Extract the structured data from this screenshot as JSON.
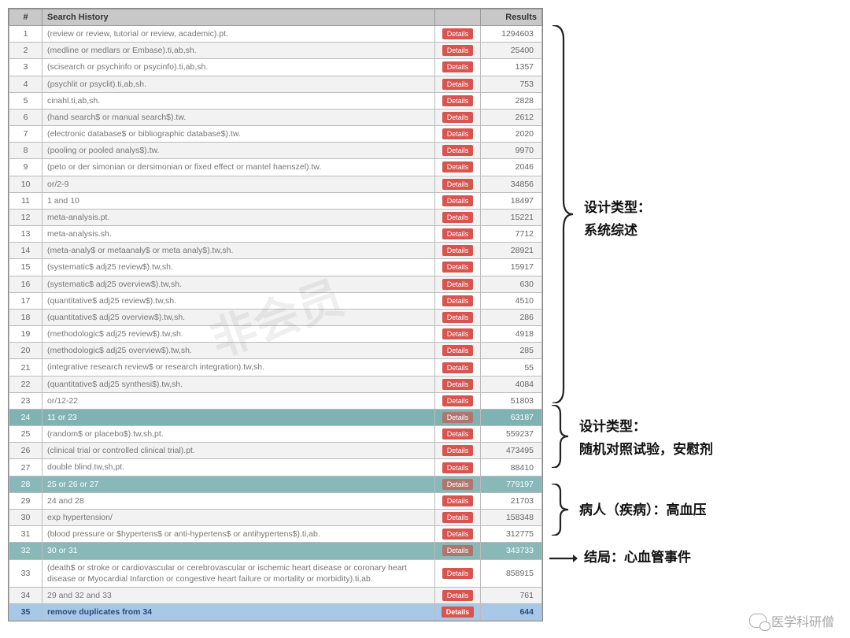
{
  "headers": {
    "num": "#",
    "query": "Search History",
    "results": "Results"
  },
  "button_label": "Details",
  "watermark": "非会员",
  "footer_credit": "医学科研僧",
  "colors": {
    "header_bg": "#c8c8c8",
    "row_even": "#f2f2f2",
    "row_odd": "#ffffff",
    "highlight_teal": "#7fb3b3",
    "highlight_blue": "#a8c8e8",
    "details_btn": "#d9534f",
    "details_btn_muted": "#b0766e",
    "border": "#bbbbbb",
    "text_muted": "#777777"
  },
  "rows": [
    {
      "n": "1",
      "q": "(review or review, tutorial or review, academic).pt.",
      "r": "1294603",
      "cls": "odd"
    },
    {
      "n": "2",
      "q": "(medline or medlars or Embase).ti,ab,sh.",
      "r": "25400",
      "cls": "even"
    },
    {
      "n": "3",
      "q": "(scisearch or psychinfo or psycinfo).ti,ab,sh.",
      "r": "1357",
      "cls": "odd"
    },
    {
      "n": "4",
      "q": "(psychlit or psyclit).ti,ab,sh.",
      "r": "753",
      "cls": "even"
    },
    {
      "n": "5",
      "q": "cinahl.ti,ab,sh.",
      "r": "2828",
      "cls": "odd"
    },
    {
      "n": "6",
      "q": "(hand search$ or manual search$).tw.",
      "r": "2612",
      "cls": "even"
    },
    {
      "n": "7",
      "q": "(electronic database$ or bibliographic database$).tw.",
      "r": "2020",
      "cls": "odd"
    },
    {
      "n": "8",
      "q": "(pooling or pooled analys$).tw.",
      "r": "9970",
      "cls": "even"
    },
    {
      "n": "9",
      "q": "(peto or der simonian or dersimonian or fixed effect or mantel haenszel).tw.",
      "r": "2046",
      "cls": "odd"
    },
    {
      "n": "10",
      "q": "or/2-9",
      "r": "34856",
      "cls": "even"
    },
    {
      "n": "11",
      "q": "1 and 10",
      "r": "18497",
      "cls": "odd"
    },
    {
      "n": "12",
      "q": "meta-analysis.pt.",
      "r": "15221",
      "cls": "even"
    },
    {
      "n": "13",
      "q": "meta-analysis.sh.",
      "r": "7712",
      "cls": "odd"
    },
    {
      "n": "14",
      "q": "(meta-analy$ or metaanaly$ or meta analy$).tw,sh.",
      "r": "28921",
      "cls": "even"
    },
    {
      "n": "15",
      "q": "(systematic$ adj25 review$).tw,sh.",
      "r": "15917",
      "cls": "odd"
    },
    {
      "n": "16",
      "q": "(systematic$ adj25 overview$).tw,sh.",
      "r": "630",
      "cls": "even"
    },
    {
      "n": "17",
      "q": "(quantitative$ adj25 review$).tw,sh.",
      "r": "4510",
      "cls": "odd"
    },
    {
      "n": "18",
      "q": "(quantitative$ adj25 overview$).tw,sh.",
      "r": "286",
      "cls": "even"
    },
    {
      "n": "19",
      "q": "(methodologic$ adj25 review$).tw,sh.",
      "r": "4918",
      "cls": "odd"
    },
    {
      "n": "20",
      "q": "(methodologic$ adj25 overview$).tw,sh.",
      "r": "285",
      "cls": "even"
    },
    {
      "n": "21",
      "q": "(integrative research review$ or research integration).tw,sh.",
      "r": "55",
      "cls": "odd"
    },
    {
      "n": "22",
      "q": "(quantitative$ adj25 synthesi$).tw,sh.",
      "r": "4084",
      "cls": "even"
    },
    {
      "n": "23",
      "q": "or/12-22",
      "r": "51803",
      "cls": "odd"
    },
    {
      "n": "24",
      "q": "11 or 23",
      "r": "63187",
      "cls": "hl-teal"
    },
    {
      "n": "25",
      "q": "(random$ or placebo$).tw,sh,pt.",
      "r": "559237",
      "cls": "odd"
    },
    {
      "n": "26",
      "q": "(clinical trial or controlled clinical trial).pt.",
      "r": "473495",
      "cls": "even"
    },
    {
      "n": "27",
      "q": "double blind.tw,sh,pt.",
      "r": "88410",
      "cls": "odd"
    },
    {
      "n": "28",
      "q": "25 or 26 or 27",
      "r": "779197",
      "cls": "hl-teal2"
    },
    {
      "n": "29",
      "q": "24 and 28",
      "r": "21703",
      "cls": "odd"
    },
    {
      "n": "30",
      "q": "exp hypertension/",
      "r": "158348",
      "cls": "even"
    },
    {
      "n": "31",
      "q": "(blood pressure or $hypertens$ or anti-hypertens$ or antihypertens$).ti,ab.",
      "r": "312775",
      "cls": "odd"
    },
    {
      "n": "32",
      "q": "30 or 31",
      "r": "343733",
      "cls": "hl-teal2"
    },
    {
      "n": "33",
      "q": "(death$ or stroke or cardiovascular or cerebrovascular or ischemic heart disease or coronary heart disease or Myocardial Infarction or congestive heart failure or mortality or morbidity).ti,ab.",
      "r": "858915",
      "cls": "odd"
    },
    {
      "n": "34",
      "q": "29 and 32 and 33",
      "r": "761",
      "cls": "even"
    },
    {
      "n": "35",
      "q": "remove duplicates from 34",
      "r": "644",
      "cls": "hl-blue"
    }
  ],
  "annotations": {
    "a1_line1": "设计类型：",
    "a1_line2": "系统综述",
    "a2_line1": "设计类型：",
    "a2_line2": "随机对照试验，安慰剂",
    "a3": "病人（疾病）：高血压",
    "a4": "结局：心血管事件"
  }
}
